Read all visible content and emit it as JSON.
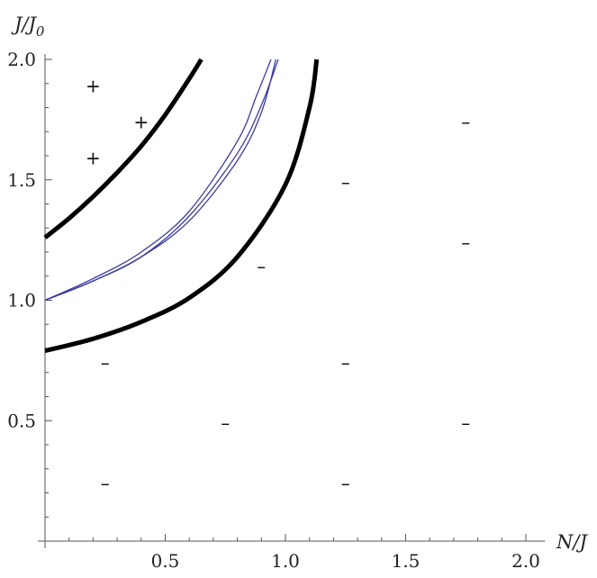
{
  "chart_data": {
    "type": "line",
    "title": "",
    "xlabel": "N/J",
    "ylabel": "J/J",
    "ylabel_sub": "0",
    "xlim": [
      0,
      2.05
    ],
    "ylim": [
      0,
      2.0
    ],
    "x_ticks": [
      "0.5",
      "1.0",
      "1.5",
      "2.0"
    ],
    "y_ticks": [
      "0.5",
      "1.0",
      "1.5",
      "2.0"
    ],
    "x_tick_values": [
      0.5,
      1.0,
      1.5,
      2.0
    ],
    "y_tick_values": [
      0.5,
      1.0,
      1.5,
      2.0
    ],
    "grid": false,
    "series": [
      {
        "color": "#000000",
        "style": "thick",
        "points": [
          [
            0,
            1.26
          ],
          [
            0.1,
            1.34
          ],
          [
            0.2,
            1.43
          ],
          [
            0.3,
            1.53
          ],
          [
            0.4,
            1.64
          ],
          [
            0.5,
            1.77
          ],
          [
            0.6,
            1.92
          ],
          [
            0.65,
            2.0
          ]
        ]
      },
      {
        "color": "#000000",
        "style": "thick",
        "points": [
          [
            0,
            0.79
          ],
          [
            0.2,
            0.84
          ],
          [
            0.4,
            0.91
          ],
          [
            0.6,
            1.01
          ],
          [
            0.8,
            1.18
          ],
          [
            1.0,
            1.48
          ],
          [
            1.1,
            1.8
          ],
          [
            1.13,
            2.0
          ]
        ]
      },
      {
        "color": "#3a3aa0",
        "style": "thin",
        "points": [
          [
            0,
            1.0
          ],
          [
            0.2,
            1.08
          ],
          [
            0.4,
            1.18
          ],
          [
            0.6,
            1.33
          ],
          [
            0.8,
            1.58
          ],
          [
            0.9,
            1.78
          ],
          [
            0.96,
            2.0
          ]
        ]
      },
      {
        "color": "#3a3aa0",
        "style": "thin",
        "points": [
          [
            0,
            1.0
          ],
          [
            0.2,
            1.08
          ],
          [
            0.4,
            1.18
          ],
          [
            0.6,
            1.35
          ],
          [
            0.8,
            1.61
          ],
          [
            0.9,
            1.81
          ],
          [
            0.97,
            2.0
          ]
        ]
      },
      {
        "color": "#3a3aa0",
        "style": "thin",
        "points": [
          [
            0,
            1.0
          ],
          [
            0.2,
            1.09
          ],
          [
            0.4,
            1.2
          ],
          [
            0.6,
            1.37
          ],
          [
            0.8,
            1.66
          ],
          [
            0.88,
            1.85
          ],
          [
            0.94,
            2.0
          ]
        ]
      }
    ],
    "markers": [
      {
        "x": 0.2,
        "y": 1.89,
        "label": "+"
      },
      {
        "x": 0.4,
        "y": 1.74,
        "label": "+"
      },
      {
        "x": 0.2,
        "y": 1.59,
        "label": "+"
      },
      {
        "x": 1.25,
        "y": 1.49,
        "label": "–"
      },
      {
        "x": 1.75,
        "y": 1.74,
        "label": "–"
      },
      {
        "x": 1.75,
        "y": 1.24,
        "label": "–"
      },
      {
        "x": 0.9,
        "y": 1.14,
        "label": "–"
      },
      {
        "x": 0.25,
        "y": 0.74,
        "label": "–"
      },
      {
        "x": 1.25,
        "y": 0.74,
        "label": "–"
      },
      {
        "x": 0.75,
        "y": 0.49,
        "label": "–"
      },
      {
        "x": 1.75,
        "y": 0.49,
        "label": "–"
      },
      {
        "x": 0.25,
        "y": 0.24,
        "label": "–"
      },
      {
        "x": 1.25,
        "y": 0.24,
        "label": "–"
      }
    ]
  }
}
